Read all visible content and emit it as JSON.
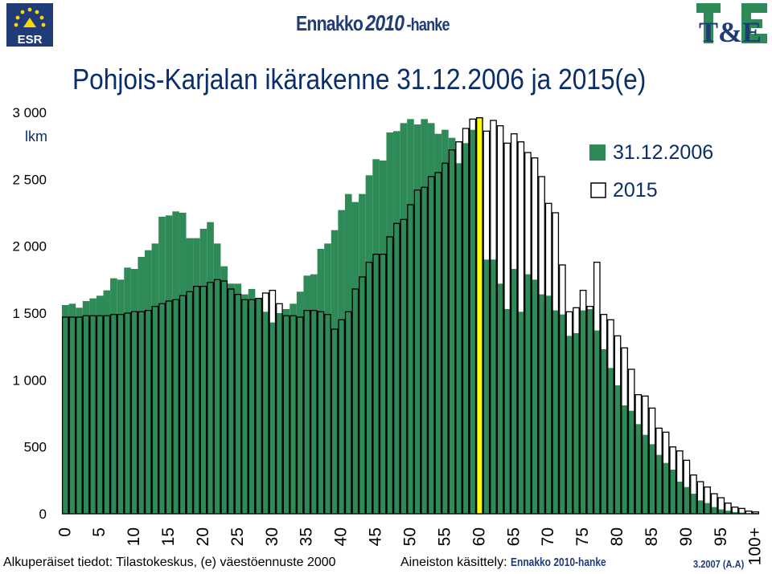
{
  "header": {
    "esr_label": "ESR",
    "center_logo": {
      "name": "Ennakko",
      "year": "2010",
      "suffix": "-hanke"
    },
    "te_logo": "T&E"
  },
  "footer": {
    "source": "Alkuperäiset tiedot: Tilastokeskus, (e) väestöennuste 2000",
    "processed_label": "Aineiston käsittely:",
    "processed_brand": "Ennakko 2010-hanke",
    "date": "3.2007 (A.A)"
  },
  "colors": {
    "series_2006": "#2e8b57",
    "series_2015": "#ffffff",
    "highlight": "#ffff00",
    "title": "#0a2e6b"
  },
  "chart_data": {
    "type": "bar",
    "title": "Pohjois-Karjalan ikärakenne 31.12.2006 ja 2015(e)",
    "ylabel": "lkm",
    "ylim": [
      0,
      3000
    ],
    "yticks": [
      "0",
      "500",
      "1 000",
      "1 500",
      "2 000",
      "2 500",
      "3 000"
    ],
    "ytick_values": [
      0,
      500,
      1000,
      1500,
      2000,
      2500,
      3000
    ],
    "xticks": [
      "0",
      "5",
      "10",
      "15",
      "20",
      "25",
      "30",
      "35",
      "40",
      "45",
      "50",
      "55",
      "60",
      "65",
      "70",
      "75",
      "80",
      "85",
      "90",
      "95",
      "100+"
    ],
    "legend_position": "top-right",
    "highlight_age": 60,
    "series": [
      {
        "name": "31.12.2006",
        "values": [
          1560,
          1570,
          1540,
          1590,
          1610,
          1630,
          1670,
          1760,
          1750,
          1840,
          1830,
          1920,
          1970,
          2020,
          2220,
          2230,
          2260,
          2250,
          2060,
          2060,
          2130,
          2180,
          2020,
          1850,
          1720,
          1720,
          1640,
          1680,
          1610,
          1510,
          1430,
          1500,
          1530,
          1570,
          1660,
          1780,
          1790,
          1980,
          2020,
          2120,
          2270,
          2390,
          2330,
          2390,
          2530,
          2650,
          2640,
          2850,
          2860,
          2920,
          2950,
          2910,
          2950,
          2920,
          2840,
          2870,
          2810,
          2620,
          2770,
          2870,
          2440,
          1900,
          1900,
          1720,
          1530,
          1830,
          1510,
          1790,
          1750,
          1640,
          1630,
          1520,
          1490,
          1330,
          1350,
          1520,
          1530,
          1370,
          1230,
          1090,
          960,
          810,
          770,
          670,
          590,
          520,
          440,
          380,
          330,
          240,
          200,
          150,
          100,
          80,
          50,
          33,
          23,
          13,
          9,
          4,
          6
        ]
      },
      {
        "name": "2015",
        "values": [
          1470,
          1470,
          1470,
          1480,
          1480,
          1480,
          1480,
          1490,
          1490,
          1500,
          1510,
          1510,
          1520,
          1550,
          1570,
          1590,
          1600,
          1630,
          1660,
          1700,
          1700,
          1730,
          1750,
          1740,
          1680,
          1640,
          1600,
          1600,
          1610,
          1650,
          1670,
          1570,
          1480,
          1480,
          1470,
          1520,
          1520,
          1510,
          1490,
          1380,
          1450,
          1510,
          1680,
          1770,
          1880,
          1940,
          1940,
          2070,
          2170,
          2200,
          2310,
          2420,
          2440,
          2520,
          2550,
          2620,
          2720,
          2780,
          2880,
          2950,
          2960,
          2860,
          2940,
          2900,
          2770,
          2840,
          2780,
          2700,
          2660,
          2520,
          2320,
          2250,
          1860,
          1510,
          1540,
          1670,
          1550,
          1880,
          1490,
          1450,
          1330,
          1240,
          1080,
          890,
          880,
          790,
          640,
          610,
          500,
          470,
          400,
          290,
          240,
          200,
          150,
          120,
          80,
          50,
          40,
          20,
          14
        ]
      }
    ]
  }
}
